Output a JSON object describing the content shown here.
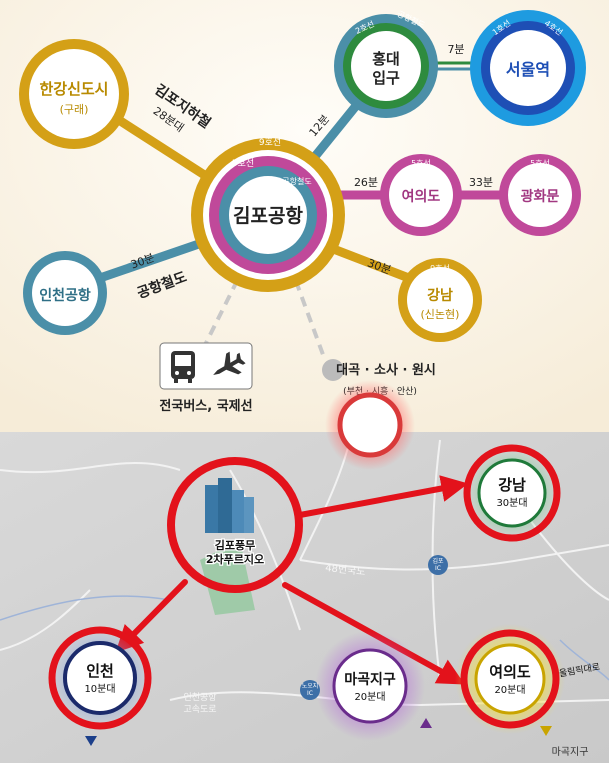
{
  "top": {
    "hub": {
      "label": "김포공항",
      "ring_9": "9호선",
      "ring_5": "5호선",
      "ring_air": "공항철도"
    },
    "gimpo_line": {
      "name": "김포지하철",
      "time": "28분대"
    },
    "hangang": {
      "label": "한강신도시",
      "sub": "(구래)"
    },
    "airport_rail_line": {
      "name": "공항철도",
      "time": "30분"
    },
    "incheon_airport": {
      "label": "인천공항",
      "line": "공항철도"
    },
    "hongdae": {
      "label1": "홍대",
      "label2": "입구",
      "line_a": "2호선",
      "line_b": "공항철도",
      "time": "12분"
    },
    "seoul_station": {
      "label": "서울역",
      "line_a": "1호선",
      "line_b": "4호선",
      "time": "7분"
    },
    "yeouido": {
      "label": "여의도",
      "line": "5호선",
      "time": "26분"
    },
    "gwanghwamun": {
      "label": "광화문",
      "line": "5호선",
      "time": "33분"
    },
    "gangnam": {
      "label": "강남",
      "sub": "(신논현)",
      "line": "9호선",
      "time": "30분"
    },
    "bus_plane_caption": "전국버스, 국제선",
    "daegok": {
      "label": "대곡 · 소사 · 원시",
      "sub": "(부천 · 시흥 · 안산)"
    },
    "colors": {
      "gold": "#D4A017",
      "magenta": "#C0499A",
      "teal": "#4B8FA8",
      "green": "#2E8B3E",
      "blue": "#1E6FD0"
    }
  },
  "map": {
    "complex_label1": "김포풍무",
    "complex_label2": "2차푸르지오",
    "gangnam": {
      "label": "강남",
      "time": "30분대"
    },
    "incheon": {
      "label": "인천",
      "time": "10분대"
    },
    "yeouido": {
      "label": "여의도",
      "time": "20분대"
    },
    "magok": {
      "label": "마곡지구",
      "time": "20분대"
    },
    "road_48": "48번국도",
    "gimpo_ic": "김포\nIC",
    "noonjo_ic": "노오지\nIC",
    "airport_highway": "인천공항\n고속도로",
    "magok_bottom": "마곡지구",
    "olympic_road": "올림픽대로",
    "colors": {
      "red": "#E3121B",
      "green_node": "#1F7A3A",
      "navy": "#1B2A6B",
      "gold_node": "#C9A400"
    }
  }
}
